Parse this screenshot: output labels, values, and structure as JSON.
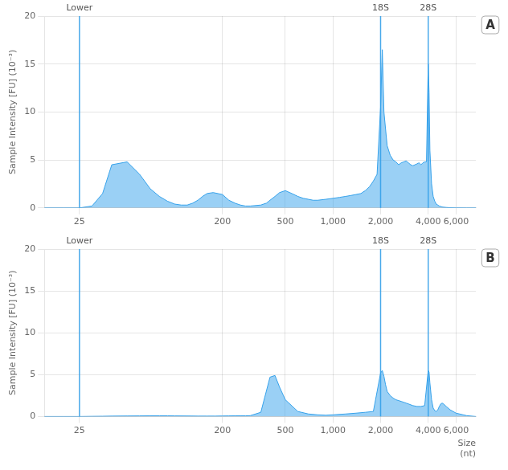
{
  "chart_data": [
    {
      "type": "area",
      "title": "A",
      "y_label": "Sample Intensity [FU] (10⁻³)",
      "log": "x",
      "grid": true,
      "xlim": [
        15,
        8000
      ],
      "xticks": [
        25,
        200,
        500,
        {
          "value": 1000,
          "label": "1,000"
        },
        {
          "value": 2000,
          "label": "2,000"
        },
        {
          "value": 4000,
          "label": "4,000"
        },
        {
          "value": 6000,
          "label": "6,000"
        }
      ],
      "ylim": [
        0,
        20
      ],
      "yticks": [
        0,
        5,
        10,
        15,
        20
      ],
      "annotations": [
        {
          "type": "vline",
          "x": 25,
          "label": "Lower"
        },
        {
          "type": "vline",
          "x": 2000,
          "label": "18S"
        },
        {
          "type": "vline",
          "x": 4000,
          "label": "28S"
        }
      ],
      "x": [
        15,
        20,
        25,
        30,
        35,
        40,
        50,
        60,
        70,
        80,
        90,
        100,
        110,
        120,
        130,
        140,
        150,
        160,
        175,
        200,
        220,
        240,
        260,
        280,
        300,
        350,
        380,
        400,
        430,
        460,
        500,
        550,
        600,
        650,
        700,
        750,
        800,
        900,
        1000,
        1100,
        1200,
        1300,
        1400,
        1500,
        1600,
        1700,
        1800,
        1900,
        2000,
        2050,
        2100,
        2200,
        2300,
        2400,
        2500,
        2600,
        2700,
        2800,
        2900,
        3000,
        3100,
        3200,
        3300,
        3400,
        3500,
        3600,
        3700,
        3800,
        3900,
        4000,
        4050,
        4100,
        4200,
        4300,
        4400,
        4500,
        4600,
        4700,
        4800,
        4900,
        5000,
        5200,
        5500,
        6000,
        7000,
        8000
      ],
      "values": [
        0,
        0.0,
        0.0,
        0.2,
        1.5,
        4.5,
        4.8,
        3.5,
        2.0,
        1.2,
        0.7,
        0.4,
        0.3,
        0.3,
        0.5,
        0.8,
        1.2,
        1.5,
        1.6,
        1.4,
        0.8,
        0.5,
        0.3,
        0.2,
        0.2,
        0.3,
        0.5,
        0.8,
        1.2,
        1.6,
        1.8,
        1.5,
        1.2,
        1.0,
        0.9,
        0.8,
        0.8,
        0.9,
        1.0,
        1.1,
        1.2,
        1.3,
        1.4,
        1.5,
        1.8,
        2.2,
        2.8,
        3.5,
        10.5,
        16.5,
        10.0,
        6.5,
        5.5,
        5.0,
        4.8,
        4.5,
        4.7,
        4.8,
        4.9,
        4.7,
        4.5,
        4.4,
        4.5,
        4.6,
        4.7,
        4.5,
        4.7,
        4.8,
        4.8,
        15.0,
        12.0,
        6.0,
        2.5,
        1.2,
        0.7,
        0.4,
        0.3,
        0.2,
        0.15,
        0.1,
        0.08,
        0.05,
        0.02,
        0.01,
        0.0,
        0.0
      ]
    },
    {
      "type": "area",
      "title": "B",
      "x_label": "Size\n(nt)",
      "y_label": "Sample Intensity [FU] (10⁻³)",
      "log": "x",
      "grid": true,
      "xlim": [
        15,
        8000
      ],
      "xticks": [
        25,
        200,
        500,
        {
          "value": 1000,
          "label": "1,000"
        },
        {
          "value": 2000,
          "label": "2,000"
        },
        {
          "value": 4000,
          "label": "4,000"
        },
        {
          "value": 6000,
          "label": "6,000"
        }
      ],
      "ylim": [
        0,
        20
      ],
      "yticks": [
        0,
        5,
        10,
        15,
        20
      ],
      "annotations": [
        {
          "type": "vline",
          "x": 25,
          "label": "Lower"
        },
        {
          "type": "vline",
          "x": 2000,
          "label": "18S"
        },
        {
          "type": "vline",
          "x": 4000,
          "label": "28S"
        }
      ],
      "x": [
        15,
        20,
        25,
        30,
        35,
        40,
        50,
        60,
        70,
        80,
        90,
        100,
        120,
        140,
        160,
        180,
        200,
        220,
        240,
        260,
        280,
        300,
        350,
        400,
        430,
        460,
        500,
        600,
        700,
        800,
        900,
        1000,
        1200,
        1400,
        1600,
        1800,
        2000,
        2050,
        2100,
        2150,
        2200,
        2300,
        2400,
        2500,
        2600,
        2700,
        2800,
        2900,
        3000,
        3200,
        3400,
        3600,
        3800,
        4000,
        4050,
        4100,
        4200,
        4300,
        4400,
        4500,
        4600,
        4700,
        4800,
        4900,
        5000,
        5200,
        5500,
        6000,
        7000,
        8000
      ],
      "values": [
        0,
        0.0,
        0.0,
        0.02,
        0.03,
        0.05,
        0.06,
        0.07,
        0.08,
        0.08,
        0.08,
        0.07,
        0.06,
        0.05,
        0.05,
        0.05,
        0.06,
        0.07,
        0.08,
        0.08,
        0.08,
        0.1,
        0.5,
        4.7,
        4.9,
        3.5,
        2.0,
        0.6,
        0.3,
        0.2,
        0.15,
        0.2,
        0.3,
        0.4,
        0.5,
        0.6,
        5.2,
        5.5,
        4.8,
        3.8,
        3.0,
        2.5,
        2.2,
        2.0,
        1.9,
        1.8,
        1.7,
        1.6,
        1.5,
        1.3,
        1.2,
        1.2,
        1.3,
        5.5,
        5.3,
        4.0,
        2.0,
        1.0,
        0.7,
        0.6,
        0.8,
        1.2,
        1.5,
        1.6,
        1.5,
        1.2,
        0.8,
        0.4,
        0.1,
        0.0
      ]
    }
  ]
}
